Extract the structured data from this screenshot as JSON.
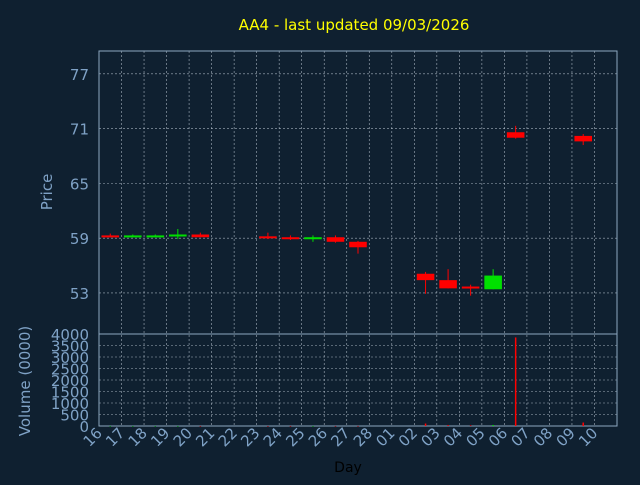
{
  "colors": {
    "background": "#0f2030",
    "plot_border": "#8da7c0",
    "grid": "#c8d4df",
    "title": "#ffff00",
    "axis_text": "#7fa2c6",
    "up": "#00e000",
    "down": "#ff0000"
  },
  "chart_data": [
    {
      "type": "candlestick",
      "title": "AA4 - last updated 09/03/2026",
      "ylabel": "Price",
      "ylim": [
        48.5,
        79.5
      ],
      "yticks": [
        53,
        59,
        65,
        71,
        77
      ],
      "grid": true,
      "categories": [
        "16",
        "17",
        "18",
        "19",
        "20",
        "21",
        "22",
        "23",
        "24",
        "25",
        "26",
        "27",
        "28",
        "01",
        "02",
        "03",
        "04",
        "05",
        "06",
        "07",
        "08",
        "09",
        "10"
      ],
      "candles": [
        {
          "x": "16",
          "open": 59.3,
          "high": 59.5,
          "low": 59.1,
          "close": 59.2
        },
        {
          "x": "17",
          "open": 59.2,
          "high": 59.4,
          "low": 59.1,
          "close": 59.3
        },
        {
          "x": "18",
          "open": 59.2,
          "high": 59.4,
          "low": 59.1,
          "close": 59.3
        },
        {
          "x": "19",
          "open": 59.2,
          "high": 60.0,
          "low": 58.9,
          "close": 59.4
        },
        {
          "x": "20",
          "open": 59.4,
          "high": 59.6,
          "low": 59.1,
          "close": 59.1
        },
        {
          "x": "23",
          "open": 59.2,
          "high": 59.6,
          "low": 58.9,
          "close": 59.0
        },
        {
          "x": "24",
          "open": 59.1,
          "high": 59.3,
          "low": 58.8,
          "close": 58.9
        },
        {
          "x": "25",
          "open": 58.9,
          "high": 59.3,
          "low": 58.6,
          "close": 59.1
        },
        {
          "x": "26",
          "open": 59.1,
          "high": 59.3,
          "low": 58.5,
          "close": 58.6
        },
        {
          "x": "27",
          "open": 58.6,
          "high": 58.7,
          "low": 57.3,
          "close": 58.0
        },
        {
          "x": "02",
          "open": 55.1,
          "high": 55.3,
          "low": 52.9,
          "close": 54.4
        },
        {
          "x": "03",
          "open": 54.4,
          "high": 55.6,
          "low": 53.5,
          "close": 53.5
        },
        {
          "x": "04",
          "open": 53.7,
          "high": 53.9,
          "low": 52.7,
          "close": 53.5
        },
        {
          "x": "05",
          "open": 53.4,
          "high": 55.6,
          "low": 53.4,
          "close": 54.9
        },
        {
          "x": "06",
          "open": 70.6,
          "high": 71.3,
          "low": 69.9,
          "close": 70.0
        },
        {
          "x": "09",
          "open": 70.2,
          "high": 70.4,
          "low": 69.2,
          "close": 69.6
        }
      ]
    },
    {
      "type": "bar",
      "ylabel": "Volume (0000)",
      "xlabel": "Day",
      "ylim": [
        0,
        4000
      ],
      "yticks": [
        0,
        500,
        1000,
        1500,
        2000,
        2500,
        3000,
        3500,
        4000
      ],
      "grid": true,
      "categories": [
        "16",
        "17",
        "18",
        "19",
        "20",
        "21",
        "22",
        "23",
        "24",
        "25",
        "26",
        "27",
        "28",
        "01",
        "02",
        "03",
        "04",
        "05",
        "06",
        "07",
        "08",
        "09",
        "10"
      ],
      "series": [
        {
          "values": [
            2,
            2,
            2,
            3,
            2,
            0,
            0,
            2,
            2,
            2,
            3,
            4,
            0,
            0,
            110,
            40,
            30,
            45,
            3850,
            0,
            0,
            150,
            0
          ],
          "colors": [
            "up",
            "up",
            "up",
            "up",
            "down",
            "up",
            "up",
            "down",
            "down",
            "up",
            "down",
            "down",
            "up",
            "up",
            "down",
            "down",
            "down",
            "up",
            "down",
            "up",
            "up",
            "down",
            "up"
          ]
        }
      ]
    }
  ]
}
